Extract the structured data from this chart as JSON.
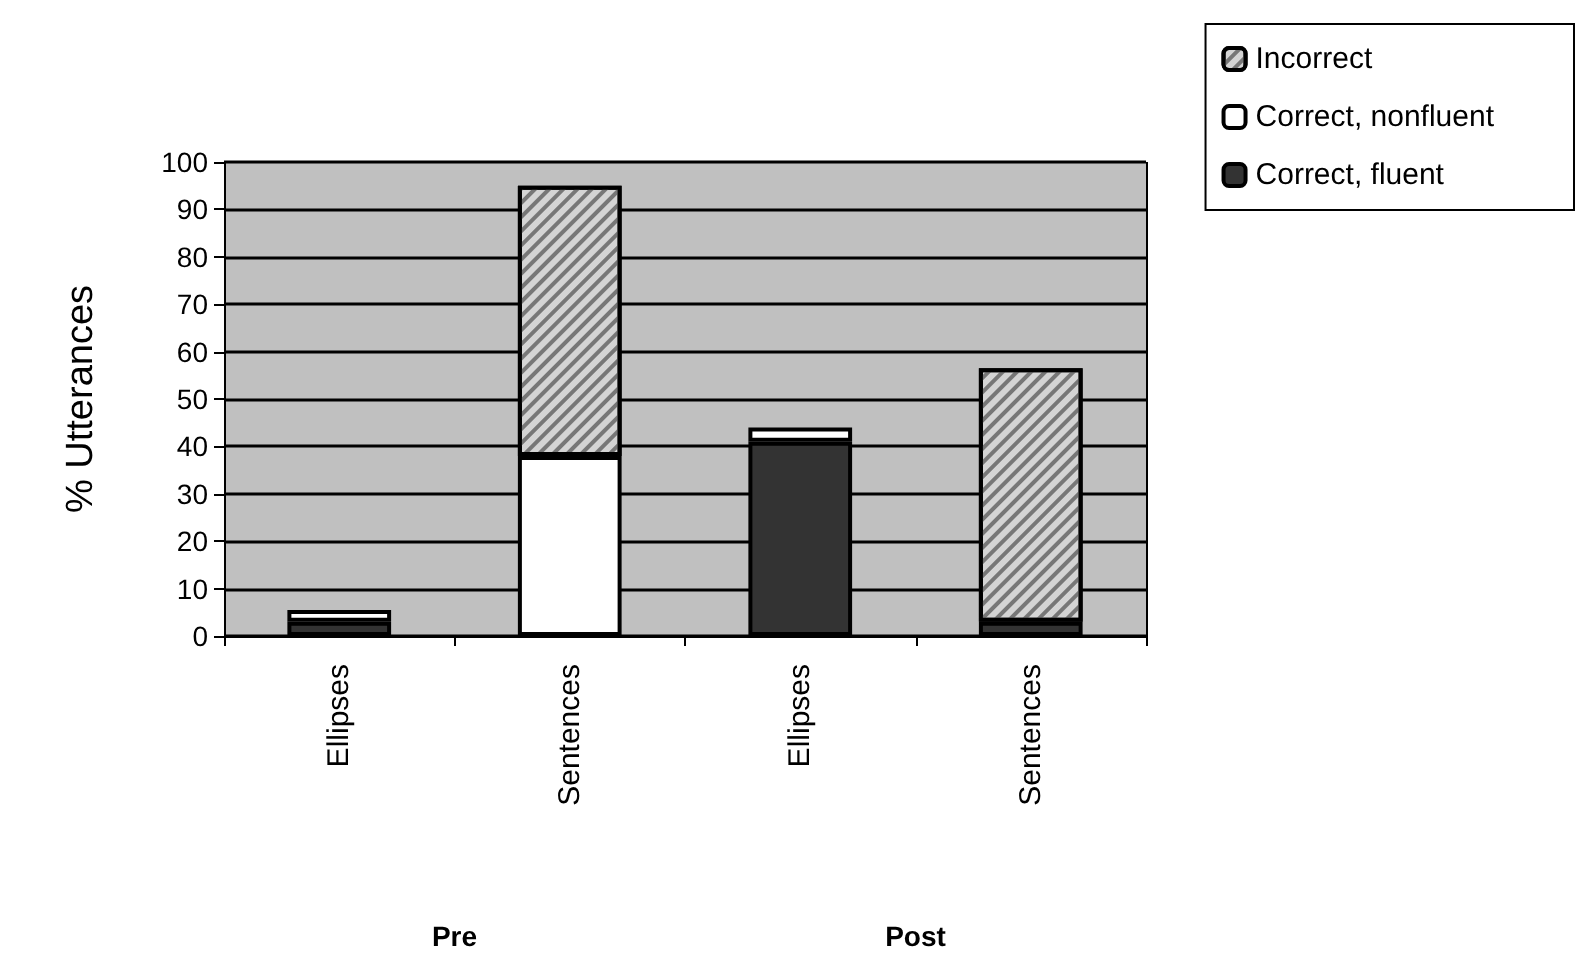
{
  "chart_data": {
    "type": "bar",
    "ylabel": "% Utterances",
    "categories": [
      "Ellipses",
      "Sentences",
      "Ellipses",
      "Sentences"
    ],
    "stacked": true,
    "series": [
      {
        "name": "Correct, fluent",
        "color": "#333333",
        "values": [
          3,
          0,
          41,
          3
        ]
      },
      {
        "name": "Correct, nonfluent",
        "color": "#ffffff",
        "values": [
          2.5,
          38,
          3,
          0
        ]
      },
      {
        "name": "Incorrect",
        "color": "#d4d4d4",
        "values": [
          0,
          57,
          0,
          53.5
        ]
      }
    ],
    "ylim": [
      0,
      100
    ],
    "yticks": [
      0,
      10,
      20,
      30,
      40,
      50,
      60,
      70,
      80,
      90,
      100
    ],
    "grid": "y",
    "legend": "top right",
    "annotations": [
      "Pre",
      "Post"
    ]
  }
}
